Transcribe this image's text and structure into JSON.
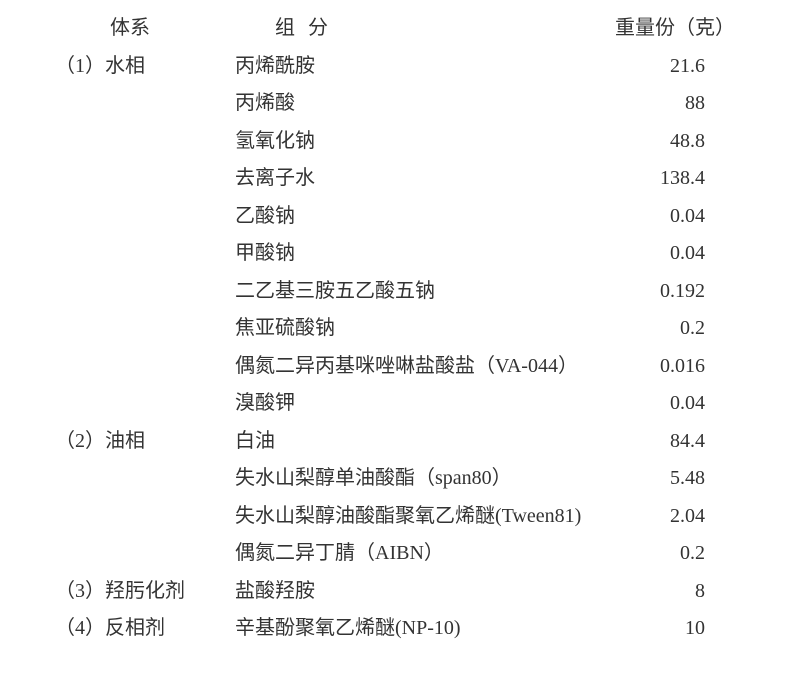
{
  "background_color": "#ffffff",
  "text_color": "#333333",
  "font_family": "SimSun",
  "font_size": 20,
  "header": {
    "system": "体系",
    "component": "组 分",
    "value": "重量份（克）"
  },
  "sections": [
    {
      "system_label": "（1）水相",
      "rows": [
        {
          "component": "丙烯酰胺",
          "value": "21.6"
        },
        {
          "component": "丙烯酸",
          "value": "88"
        },
        {
          "component": "氢氧化钠",
          "value": "48.8"
        },
        {
          "component": "去离子水",
          "value": "138.4"
        },
        {
          "component": "乙酸钠",
          "value": "0.04"
        },
        {
          "component": "甲酸钠",
          "value": "0.04"
        },
        {
          "component": "二乙基三胺五乙酸五钠",
          "value": "0.192"
        },
        {
          "component": "焦亚硫酸钠",
          "value": "0.2"
        },
        {
          "component": "偶氮二异丙基咪唑啉盐酸盐（VA-044）",
          "value": "0.016"
        },
        {
          "component": "溴酸钾",
          "value": "0.04"
        }
      ]
    },
    {
      "system_label": "（2）油相",
      "rows": [
        {
          "component": "白油",
          "value": "84.4"
        },
        {
          "component": "失水山梨醇单油酸酯（span80）",
          "value": "5.48"
        },
        {
          "component": "失水山梨醇油酸酯聚氧乙烯醚(Tween81)",
          "value": "2.04"
        },
        {
          "component": "偶氮二异丁腈（AIBN）",
          "value": "0.2"
        }
      ]
    },
    {
      "system_label": "（3）羟肟化剂",
      "rows": [
        {
          "component": "盐酸羟胺",
          "value": "8"
        }
      ]
    },
    {
      "system_label": "（4）反相剂",
      "rows": [
        {
          "component": "辛基酚聚氧乙烯醚(NP-10)",
          "value": "10"
        }
      ]
    }
  ]
}
